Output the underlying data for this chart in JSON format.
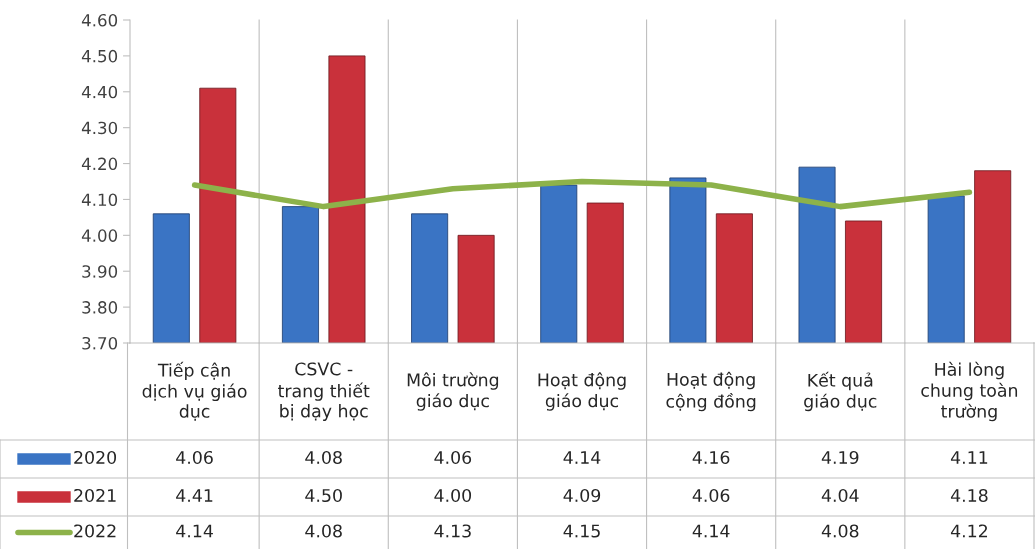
{
  "chart_data": {
    "type": "bar",
    "categories": [
      "Tiếp cận\ndịch vụ giáo\ndục",
      "CSVC -\ntrang thiết\nbị dạy học",
      "Môi trường\ngiáo dục",
      "Hoạt động\ngiáo dục",
      "Hoạt động\ncộng đồng",
      "Kết quả\ngiáo dục",
      "Hài lòng\nchung toàn\ntrường"
    ],
    "series": [
      {
        "name": "2020",
        "color": "#3a74c4",
        "values": [
          4.06,
          4.08,
          4.06,
          4.14,
          4.16,
          4.19,
          4.11
        ],
        "value_labels": [
          "4.06",
          "4.08",
          "4.06",
          "4.14",
          "4.16",
          "4.19",
          "4.11"
        ]
      },
      {
        "name": "2021",
        "color": "#c9313b",
        "values": [
          4.41,
          4.5,
          4.0,
          4.09,
          4.06,
          4.04,
          4.18
        ],
        "value_labels": [
          "4.41",
          "4.50",
          "4.00",
          "4.09",
          "4.06",
          "4.04",
          "4.18"
        ]
      },
      {
        "name": "2022",
        "type": "line",
        "color": "#8db24a",
        "values": [
          4.14,
          4.08,
          4.13,
          4.15,
          4.14,
          4.08,
          4.12
        ],
        "value_labels": [
          "4.14",
          "4.08",
          "4.13",
          "4.15",
          "4.14",
          "4.08",
          "4.12"
        ]
      }
    ],
    "ylim": [
      3.7,
      4.6
    ],
    "yticks": [
      {
        "value": 3.7,
        "label": "3.70"
      },
      {
        "value": 3.8,
        "label": "3.80"
      },
      {
        "value": 3.9,
        "label": "3.90"
      },
      {
        "value": 4.0,
        "label": "4.00"
      },
      {
        "value": 4.1,
        "label": "4.10"
      },
      {
        "value": 4.2,
        "label": "4.20"
      },
      {
        "value": 4.3,
        "label": "4.30"
      },
      {
        "value": 4.4,
        "label": "4.40"
      },
      {
        "value": 4.5,
        "label": "4.50"
      },
      {
        "value": 4.6,
        "label": "4.60"
      }
    ],
    "grid": false,
    "legend": "bottom",
    "marker": "none",
    "line_style": "solid"
  }
}
